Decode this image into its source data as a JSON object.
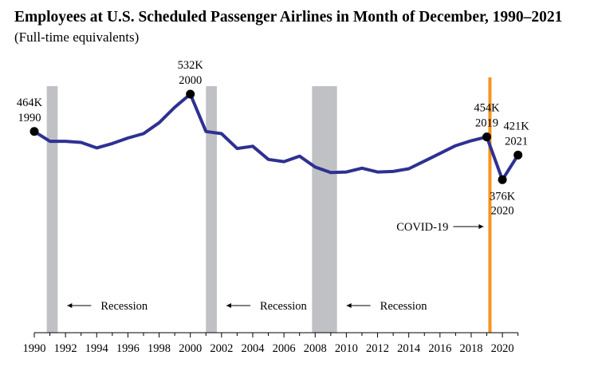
{
  "chart_data": {
    "type": "line",
    "title": "Employees at U.S. Scheduled Passenger Airlines in Month of December, 1990–2021",
    "subtitle": "(Full-time equivalents)",
    "xlabel": "",
    "ylabel": "",
    "xlim": [
      1990,
      2021
    ],
    "ylim": [
      0,
      600
    ],
    "x_ticks": [
      "1990",
      "1992",
      "1994",
      "1996",
      "1998",
      "2000",
      "2002",
      "2004",
      "2006",
      "2008",
      "2010",
      "2012",
      "2014",
      "2016",
      "2018",
      "2020"
    ],
    "series": [
      {
        "name": "",
        "color": "#2e3192",
        "x": [
          1990,
          1991,
          1992,
          1993,
          1994,
          1995,
          1996,
          1997,
          1998,
          1999,
          2000,
          2001,
          2002,
          2003,
          2004,
          2005,
          2006,
          2007,
          2008,
          2009,
          2010,
          2011,
          2012,
          2013,
          2014,
          2015,
          2016,
          2017,
          2018,
          2019,
          2020,
          2021
        ],
        "y": [
          464,
          446,
          446,
          444,
          434,
          442,
          452,
          460,
          480,
          508,
          532,
          464,
          460,
          433,
          437,
          413,
          409,
          419,
          399,
          389,
          390,
          397,
          390,
          391,
          396,
          410,
          424,
          438,
          447,
          454,
          376,
          421
        ]
      }
    ],
    "highlighted_points": [
      {
        "year": 1990,
        "label": "464K",
        "year_label": "1990"
      },
      {
        "year": 2000,
        "label": "532K",
        "year_label": "2000"
      },
      {
        "year": 2019,
        "label": "454K",
        "year_label": "2019"
      },
      {
        "year": 2020,
        "label": "376K",
        "year_label": "2020"
      },
      {
        "year": 2021,
        "label": "421K",
        "year_label": "2021"
      }
    ],
    "recessions": [
      {
        "start": 1990.8,
        "end": 1991.5,
        "label": "Recession"
      },
      {
        "start": 2001.0,
        "end": 2001.7,
        "label": "Recession"
      },
      {
        "start": 2007.8,
        "end": 2009.4,
        "label": "Recession"
      }
    ],
    "event_line": {
      "x": 2019.2,
      "label": "COVID-19",
      "color": "#f7931e"
    },
    "recession_color": "#c0c1c4",
    "grid": false
  }
}
